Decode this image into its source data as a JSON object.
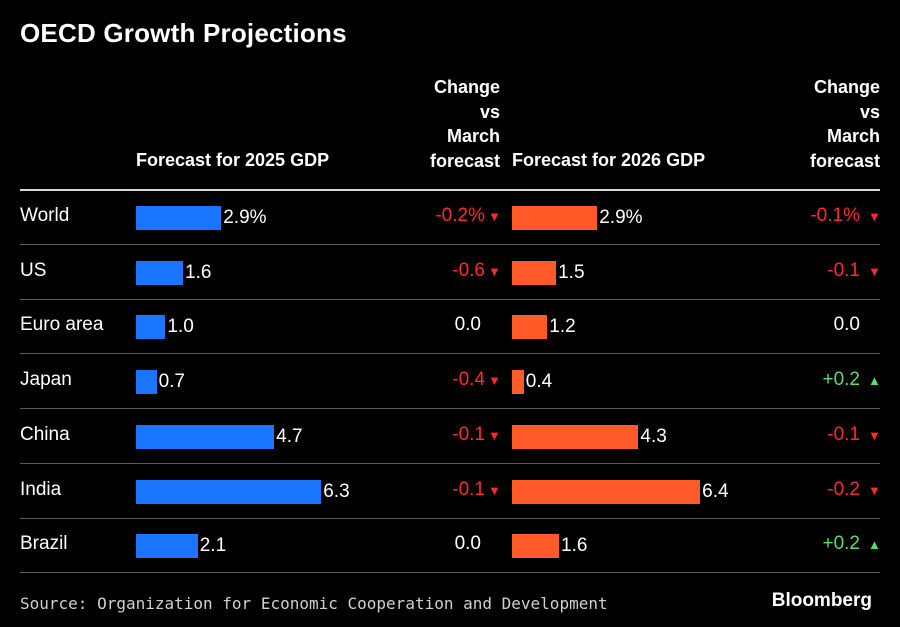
{
  "title": "OECD Growth Projections",
  "headers": {
    "forecast_2025": "Forecast for 2025 GDP",
    "change_2025": [
      "Change",
      "vs",
      "March",
      "forecast"
    ],
    "forecast_2026": "Forecast for 2026 GDP",
    "change_2026": [
      "Change",
      "vs",
      "March",
      "forecast"
    ]
  },
  "colors": {
    "bar_2025": "#1a75ff",
    "bar_2026": "#ff5a28",
    "negative": "#ff2a2a",
    "positive": "#5fdc6e",
    "background": "#000000"
  },
  "chart_data": {
    "type": "table",
    "columns": [
      "Forecast for 2025 GDP",
      "Change vs March forecast",
      "Forecast for 2026 GDP",
      "Change vs March forecast"
    ],
    "rows": [
      {
        "country": "World",
        "gdp_2025": 2.9,
        "gdp_2025_label": "2.9%",
        "chg_2025": "-0.2%",
        "dir_2025": "down",
        "gdp_2026": 2.9,
        "gdp_2026_label": "2.9%",
        "chg_2026": "-0.1%",
        "dir_2026": "down"
      },
      {
        "country": "US",
        "gdp_2025": 1.6,
        "gdp_2025_label": "1.6",
        "chg_2025": "-0.6",
        "dir_2025": "down",
        "gdp_2026": 1.5,
        "gdp_2026_label": "1.5",
        "chg_2026": "-0.1",
        "dir_2026": "down"
      },
      {
        "country": "Euro area",
        "gdp_2025": 1.0,
        "gdp_2025_label": "1.0",
        "chg_2025": "0.0",
        "dir_2025": "none",
        "gdp_2026": 1.2,
        "gdp_2026_label": "1.2",
        "chg_2026": "0.0",
        "dir_2026": "none"
      },
      {
        "country": "Japan",
        "gdp_2025": 0.7,
        "gdp_2025_label": "0.7",
        "chg_2025": "-0.4",
        "dir_2025": "down",
        "gdp_2026": 0.4,
        "gdp_2026_label": "0.4",
        "chg_2026": "+0.2",
        "dir_2026": "up"
      },
      {
        "country": "China",
        "gdp_2025": 4.7,
        "gdp_2025_label": "4.7",
        "chg_2025": "-0.1",
        "dir_2025": "down",
        "gdp_2026": 4.3,
        "gdp_2026_label": "4.3",
        "chg_2026": "-0.1",
        "dir_2026": "down"
      },
      {
        "country": "India",
        "gdp_2025": 6.3,
        "gdp_2025_label": "6.3",
        "chg_2025": "-0.1",
        "dir_2025": "down",
        "gdp_2026": 6.4,
        "gdp_2026_label": "6.4",
        "chg_2026": "-0.2",
        "dir_2026": "down"
      },
      {
        "country": "Brazil",
        "gdp_2025": 2.1,
        "gdp_2025_label": "2.1",
        "chg_2025": "0.0",
        "dir_2025": "none",
        "gdp_2026": 1.6,
        "gdp_2026_label": "1.6",
        "chg_2026": "+0.2",
        "dir_2026": "up"
      }
    ]
  },
  "source": "Source: Organization for Economic Cooperation and Development",
  "brand": "Bloomberg"
}
